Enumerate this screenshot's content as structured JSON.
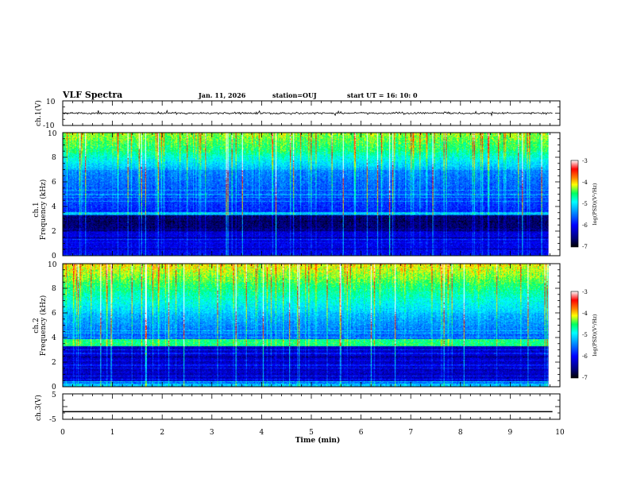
{
  "header": {
    "title": "VLF Spectra",
    "date": "Jan. 11, 2026",
    "station": "station=OUJ",
    "start_time": "start  UT =  16: 10: 0"
  },
  "chart_data": [
    {
      "type": "line",
      "name": "ch1-waveform",
      "ylabel": "ch.1(V)",
      "ylim": [
        -10,
        10
      ],
      "y_ticks": [
        "10",
        "-10"
      ],
      "baseline_value": 0,
      "noise_amplitude": 1.2
    },
    {
      "type": "heatmap",
      "name": "ch1-spectrogram",
      "ylabel_channel": "ch.1",
      "ylabel": "Frequency (kHz)",
      "ylim": [
        0,
        10
      ],
      "y_ticks": [
        "0",
        "2",
        "4",
        "6",
        "8",
        "10"
      ],
      "colorbar": {
        "ticks": [
          "-3",
          "-4",
          "-5",
          "-6",
          "-7"
        ],
        "label": "log(PSD)(V²/Hz)",
        "range": [
          -7,
          -3
        ]
      }
    },
    {
      "type": "heatmap",
      "name": "ch2-spectrogram",
      "ylabel_channel": "ch.2",
      "ylabel": "Frequency (kHz)",
      "ylim": [
        0,
        10
      ],
      "y_ticks": [
        "0",
        "2",
        "4",
        "6",
        "8",
        "10"
      ],
      "colorbar": {
        "ticks": [
          "-3",
          "-4",
          "-5",
          "-6",
          "-7"
        ],
        "label": "log(PSD)(V²/Hz)",
        "range": [
          -7,
          -3
        ]
      }
    },
    {
      "type": "line",
      "name": "ch3-trace",
      "ylabel": "ch.3(V)",
      "ylim": [
        -5,
        5
      ],
      "y_ticks": [
        "5",
        "0",
        "-5"
      ],
      "value": -2
    }
  ],
  "x_axis": {
    "label": "Time (min)",
    "range": [
      0,
      10
    ],
    "data_end": 9.85,
    "ticks": [
      "0",
      "1",
      "2",
      "3",
      "4",
      "5",
      "6",
      "7",
      "8",
      "9",
      "10"
    ]
  },
  "colors": {
    "colormap": [
      "#000000",
      "#00007a",
      "#0000ff",
      "#00a0ff",
      "#00ffff",
      "#00ff60",
      "#ffff00",
      "#ff8000",
      "#ff0000",
      "#ffffff"
    ]
  }
}
